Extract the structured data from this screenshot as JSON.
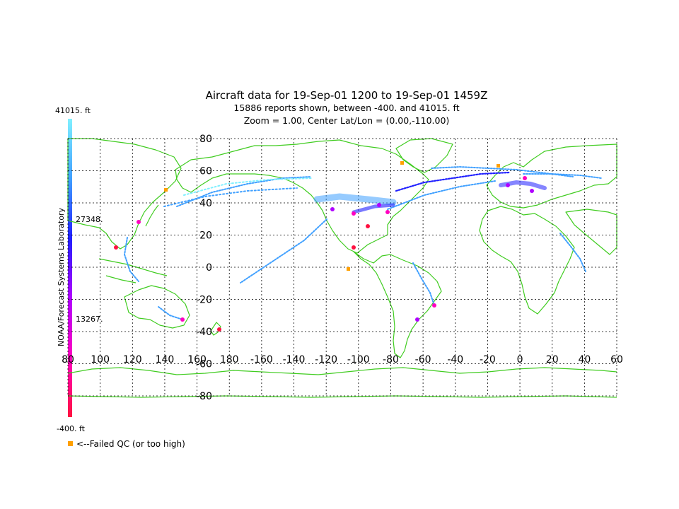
{
  "title": {
    "line1": "Aircraft data for 19-Sep-01 1200 to 19-Sep-01 1459Z",
    "line2": "15886 reports shown, between -400. and 41015. ft",
    "line3": "Zoom = 1.00,  Center Lat/Lon = (0.00,-110.00)"
  },
  "colorbar": {
    "vertical_label": "NOAA/Forecast Systems Laboratory",
    "top_label": "41015. ft",
    "mid_high_label": "27348.",
    "mid_low_label": "13267.",
    "bottom_label": "-400. ft",
    "colors": [
      "#ff1040",
      "#ff00c0",
      "#b000ff",
      "#2020ff",
      "#40a0ff",
      "#80f0ff"
    ]
  },
  "legend": {
    "failed_qc_label": "<--Failed QC (or too high)",
    "failed_qc_color": "#ffa000"
  },
  "map": {
    "grid_color": "#000000",
    "coast_color": "#40cc20",
    "lat_labels": [
      "80",
      "60",
      "40",
      "20",
      "0",
      "-20",
      "-40",
      "-60",
      "-80"
    ],
    "lon_labels": [
      "80",
      "100",
      "120",
      "140",
      "160",
      "180",
      "-160",
      "-140",
      "-120",
      "-100",
      "-80",
      "-60",
      "-40",
      "-20",
      "0",
      "20",
      "40",
      "60"
    ]
  }
}
